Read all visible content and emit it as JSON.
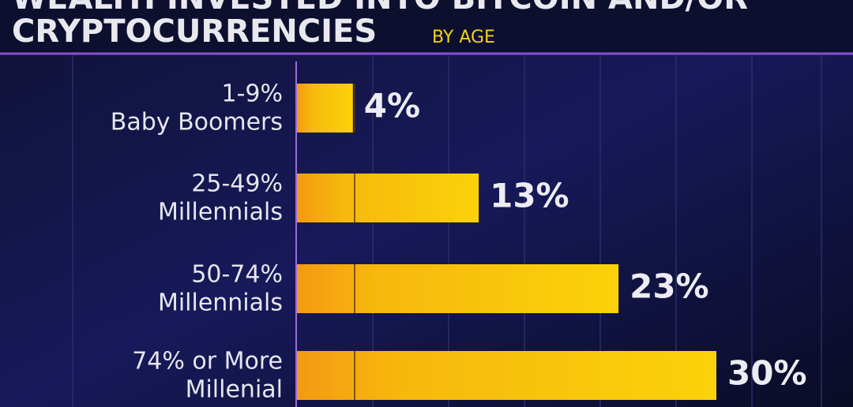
{
  "chart_data": {
    "type": "bar",
    "orientation": "horizontal",
    "title": [
      "WEALTH INVESTED INTO BITCOIN AND/OR",
      "CRYPTOCURRENCIES"
    ],
    "subtitle": "BY AGE",
    "categories": [
      [
        "1-9%",
        "Baby Boomers"
      ],
      [
        "25-49%",
        "Millennials"
      ],
      [
        "50-74%",
        "Millennials"
      ],
      [
        "74% or More",
        "Millenial"
      ]
    ],
    "values": [
      4,
      13,
      23,
      30
    ],
    "value_labels": [
      "4%",
      "13%",
      "23%",
      "30%"
    ],
    "color": "#f5b800"
  }
}
